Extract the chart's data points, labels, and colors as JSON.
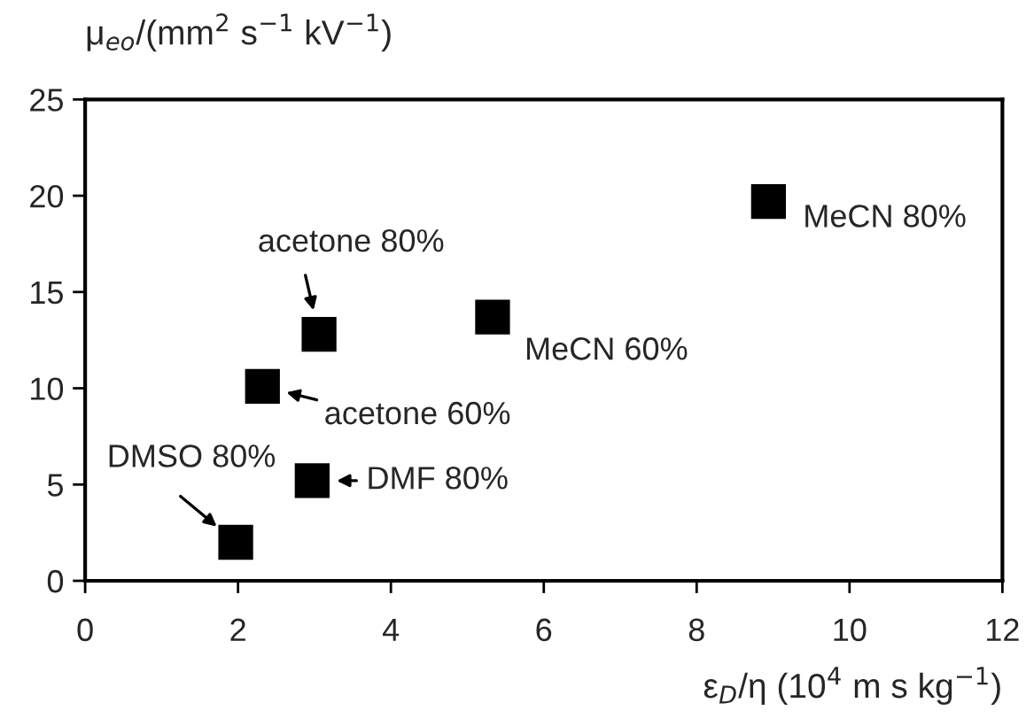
{
  "chart_data": {
    "type": "scatter",
    "xlabel": "ε$_{D}$/η (10$^{4}$ m s kg$^{−1}$)",
    "ylabel": "μ$_{eo}$/(mm$^{2}$ s$^{−1}$ kV$^{−1}$)",
    "x": [
      1.97,
      2.32,
      3.06,
      2.97,
      5.33,
      8.94
    ],
    "values": [
      2.0,
      10.1,
      12.8,
      5.2,
      13.7,
      19.7
    ],
    "color": "#000000",
    "marker": "square",
    "xlim": [
      0,
      12
    ],
    "xticks": [
      0,
      2,
      4,
      6,
      8,
      10,
      12
    ],
    "ylim": [
      0,
      25
    ],
    "yticks": [
      0,
      5,
      10,
      15,
      20,
      25
    ],
    "grid": false,
    "annotations": [
      {
        "text": "DMSO 80%",
        "x": 1.97,
        "y": 2.0
      },
      {
        "text": "acetone 60%",
        "x": 2.32,
        "y": 10.1
      },
      {
        "text": "acetone 80%",
        "x": 3.06,
        "y": 12.8
      },
      {
        "text": "DMF 80%",
        "x": 2.97,
        "y": 5.2
      },
      {
        "text": "MeCN 60%",
        "x": 5.33,
        "y": 13.7
      },
      {
        "text": "MeCN 80%",
        "x": 8.94,
        "y": 19.7
      }
    ]
  }
}
